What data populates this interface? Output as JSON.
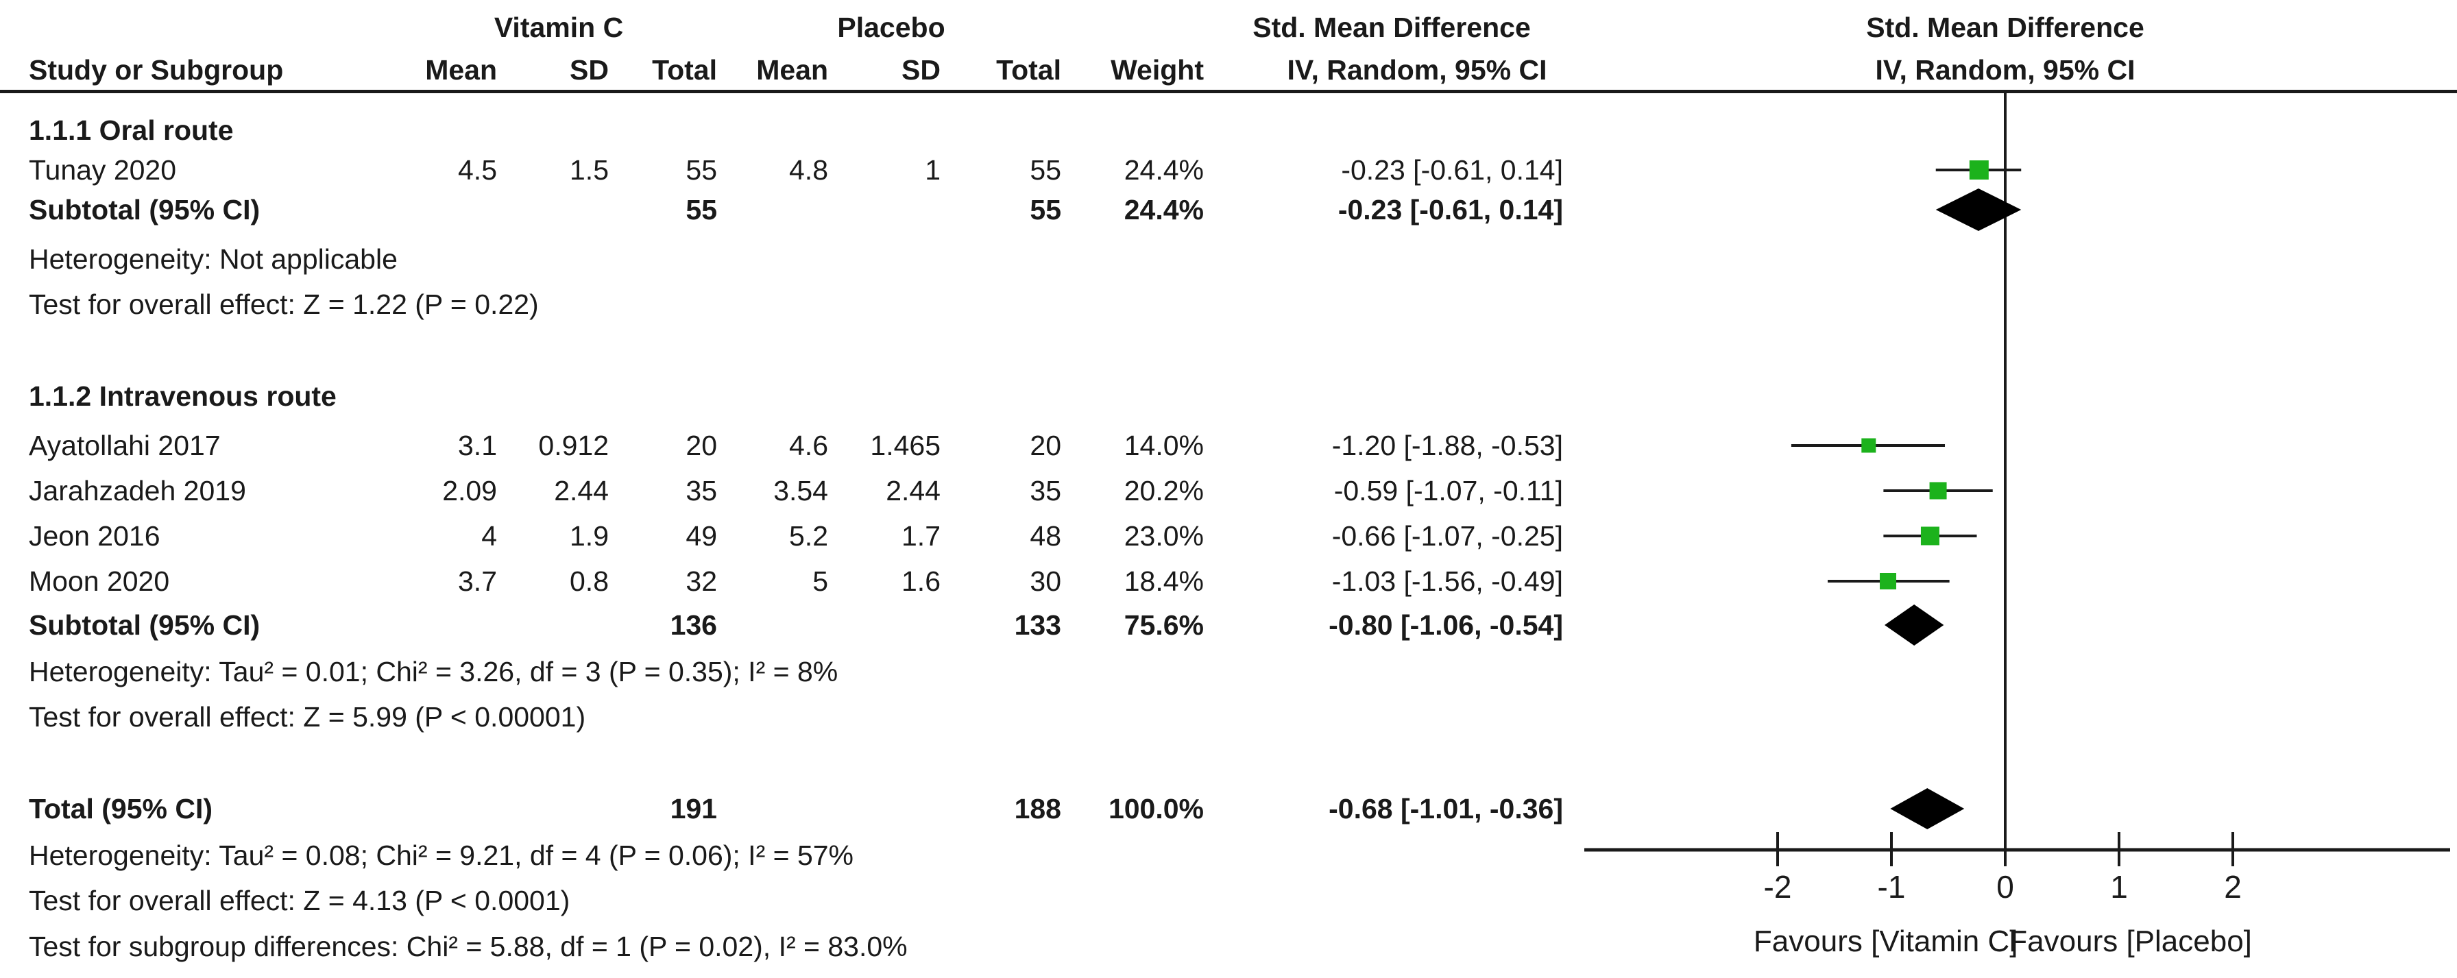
{
  "header": {
    "group1": "Vitamin C",
    "group2": "Placebo",
    "smd_left": "Std. Mean Difference",
    "smd_right": "Std. Mean Difference",
    "col_study": "Study or Subgroup",
    "col_mean1": "Mean",
    "col_sd1": "SD",
    "col_total1": "Total",
    "col_mean2": "Mean",
    "col_sd2": "SD",
    "col_total2": "Total",
    "col_weight": "Weight",
    "col_ci_left": "IV, Random, 95% CI",
    "col_ci_right": "IV, Random, 95% CI"
  },
  "sections": [
    {
      "label": "1.1.1 Oral route",
      "studies": [
        {
          "name": "Tunay 2020",
          "mean1": "4.5",
          "sd1": "1.5",
          "total1": "55",
          "mean2": "4.8",
          "sd2": "1",
          "total2": "55",
          "weight": "24.4%",
          "ci": "-0.23 [-0.61, 0.14]"
        }
      ],
      "subtotal": {
        "name": "Subtotal (95% CI)",
        "total1": "55",
        "total2": "55",
        "weight": "24.4%",
        "ci": "-0.23 [-0.61, 0.14]"
      },
      "heterogeneity": "Heterogeneity: Not applicable",
      "overall_effect": "Test for overall effect: Z = 1.22 (P = 0.22)"
    },
    {
      "label": "1.1.2 Intravenous route",
      "studies": [
        {
          "name": "Ayatollahi 2017",
          "mean1": "3.1",
          "sd1": "0.912",
          "total1": "20",
          "mean2": "4.6",
          "sd2": "1.465",
          "total2": "20",
          "weight": "14.0%",
          "ci": "-1.20 [-1.88, -0.53]"
        },
        {
          "name": "Jarahzadeh 2019",
          "mean1": "2.09",
          "sd1": "2.44",
          "total1": "35",
          "mean2": "3.54",
          "sd2": "2.44",
          "total2": "35",
          "weight": "20.2%",
          "ci": "-0.59 [-1.07, -0.11]"
        },
        {
          "name": "Jeon 2016",
          "mean1": "4",
          "sd1": "1.9",
          "total1": "49",
          "mean2": "5.2",
          "sd2": "1.7",
          "total2": "48",
          "weight": "23.0%",
          "ci": "-0.66 [-1.07, -0.25]"
        },
        {
          "name": "Moon 2020",
          "mean1": "3.7",
          "sd1": "0.8",
          "total1": "32",
          "mean2": "5",
          "sd2": "1.6",
          "total2": "30",
          "weight": "18.4%",
          "ci": "-1.03 [-1.56, -0.49]"
        }
      ],
      "subtotal": {
        "name": "Subtotal (95% CI)",
        "total1": "136",
        "total2": "133",
        "weight": "75.6%",
        "ci": "-0.80 [-1.06, -0.54]"
      },
      "heterogeneity": "Heterogeneity: Tau² = 0.01; Chi² = 3.26, df = 3 (P = 0.35); I² = 8%",
      "overall_effect": "Test for overall effect: Z = 5.99 (P < 0.00001)"
    }
  ],
  "total_row": {
    "name": "Total (95% CI)",
    "total1": "191",
    "total2": "188",
    "weight": "100.0%",
    "ci": "-0.68 [-1.01, -0.36]"
  },
  "footer": {
    "heterogeneity": "Heterogeneity: Tau² = 0.08; Chi² = 9.21, df = 4 (P = 0.06); I² = 57%",
    "overall_effect": "Test for overall effect: Z = 4.13 (P < 0.0001)",
    "subgroup_diff": "Test for subgroup differences: Chi² = 5.88, df = 1 (P = 0.02), I² = 83.0%"
  },
  "colors": {
    "square_green": "#1cb21c",
    "summary_black": "#000000",
    "line_black": "#1a1a1a"
  },
  "chart_data": {
    "type": "forest",
    "effect_measure": "Std. Mean Difference",
    "model": "IV, Random, 95% CI",
    "groups": [
      {
        "label": "1.1.1 Oral route",
        "studies": [
          {
            "name": "Tunay 2020",
            "est": -0.23,
            "lo": -0.61,
            "hi": 0.14,
            "weight_pct": 24.4
          }
        ],
        "subtotal": {
          "name": "Subtotal (95% CI)",
          "est": -0.23,
          "lo": -0.61,
          "hi": 0.14,
          "weight_pct": 24.4
        },
        "heterogeneity": "Not applicable",
        "overall_effect": "Z = 1.22 (P = 0.22)"
      },
      {
        "label": "1.1.2 Intravenous route",
        "studies": [
          {
            "name": "Ayatollahi 2017",
            "est": -1.2,
            "lo": -1.88,
            "hi": -0.53,
            "weight_pct": 14.0
          },
          {
            "name": "Jarahzadeh 2019",
            "est": -0.59,
            "lo": -1.07,
            "hi": -0.11,
            "weight_pct": 20.2
          },
          {
            "name": "Jeon 2016",
            "est": -0.66,
            "lo": -1.07,
            "hi": -0.25,
            "weight_pct": 23.0
          },
          {
            "name": "Moon 2020",
            "est": -1.03,
            "lo": -1.56,
            "hi": -0.49,
            "weight_pct": 18.4
          }
        ],
        "subtotal": {
          "name": "Subtotal (95% CI)",
          "est": -0.8,
          "lo": -1.06,
          "hi": -0.54,
          "weight_pct": 75.6
        },
        "heterogeneity": "Tau² = 0.01; Chi² = 3.26, df = 3 (P = 0.35); I² = 8%",
        "overall_effect": "Z = 5.99 (P < 0.00001)"
      }
    ],
    "total": {
      "name": "Total (95% CI)",
      "est": -0.68,
      "lo": -1.01,
      "hi": -0.36,
      "weight_pct": 100.0
    },
    "axis": {
      "ticks": [
        -2,
        -1,
        0,
        1,
        2
      ],
      "xlim": [
        -3.7,
        3.9
      ],
      "favours_left": "Favours [Vitamin C]",
      "favours_right": "Favours [Placebo]"
    }
  }
}
